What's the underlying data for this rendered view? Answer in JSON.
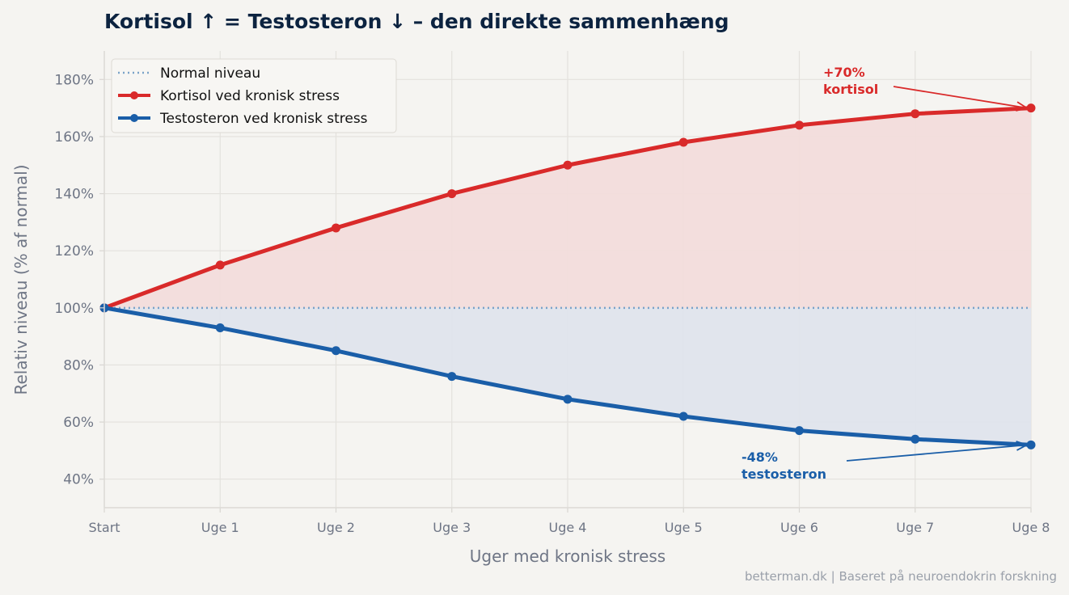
{
  "chart_data": {
    "type": "line",
    "title": "Kortisol ↑ = Testosteron ↓  –  den direkte sammenhæng",
    "xlabel": "Uger med kronisk stress",
    "ylabel": "Relativ niveau (% af normal)",
    "categories": [
      "Start",
      "Uge 1",
      "Uge 2",
      "Uge 3",
      "Uge 4",
      "Uge 5",
      "Uge 6",
      "Uge 7",
      "Uge 8"
    ],
    "ylim": [
      30,
      190
    ],
    "yticks": [
      40,
      60,
      80,
      100,
      120,
      140,
      160,
      180
    ],
    "ytick_labels": [
      "40%",
      "60%",
      "80%",
      "100%",
      "120%",
      "140%",
      "160%",
      "180%"
    ],
    "grid": true,
    "legend_position": "top-left",
    "baseline": {
      "name": "Normal niveau",
      "value": 100,
      "color": "#7ba3c9"
    },
    "series": [
      {
        "name": "Kortisol ved kronisk stress",
        "color": "#d92a2a",
        "fill": "#f2dcdb",
        "values": [
          100,
          115,
          128,
          140,
          150,
          158,
          164,
          168,
          170
        ]
      },
      {
        "name": "Testosteron ved kronisk stress",
        "color": "#1a5ea8",
        "fill": "#dfe4ec",
        "values": [
          100,
          93,
          85,
          76,
          68,
          62,
          57,
          54,
          52
        ]
      }
    ],
    "annotations": [
      {
        "lines": [
          "+70%",
          "kortisol"
        ],
        "color": "#d92a2a",
        "target_series": 0,
        "target_index": 8
      },
      {
        "lines": [
          "-48%",
          "testosteron"
        ],
        "color": "#1a5ea8",
        "target_series": 1,
        "target_index": 8
      }
    ]
  },
  "footer": {
    "source": "betterman.dk | Baseret på neuroendokrin forskning"
  }
}
